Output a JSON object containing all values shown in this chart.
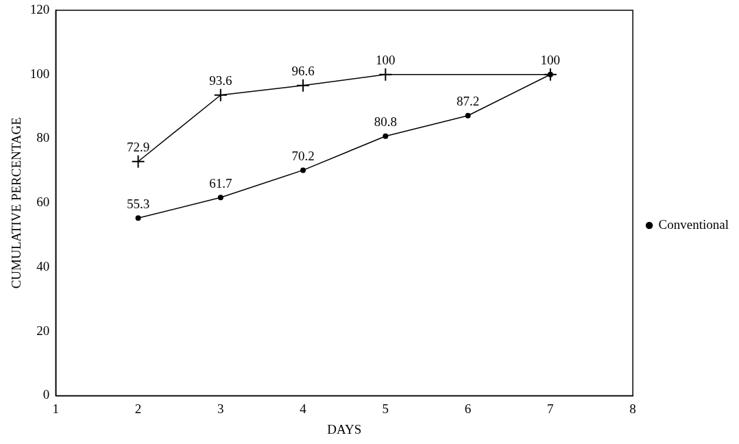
{
  "chart_data": {
    "type": "line",
    "xlabel": "DAYS",
    "ylabel": "CUMULATIVE PERCENTAGE",
    "xlim": [
      1,
      8
    ],
    "xticks": [
      1,
      2,
      3,
      4,
      5,
      6,
      7,
      8
    ],
    "ylim": [
      0,
      120
    ],
    "yticks": [
      0,
      20,
      40,
      60,
      80,
      100,
      120
    ],
    "grid": false,
    "legend": "right",
    "line_style": "solid",
    "series": [
      {
        "name": "Conventional",
        "color": "#000000",
        "marker": "circle",
        "x": [
          2,
          3,
          4,
          5,
          6,
          7
        ],
        "values": [
          55.3,
          61.7,
          70.2,
          80.8,
          87.2,
          100
        ],
        "value_labels": [
          "55.3",
          "61.7",
          "70.2",
          "80.8",
          "87.2",
          null
        ]
      },
      {
        "color": "#000000",
        "marker": "cross",
        "x": [
          2,
          3,
          4,
          5,
          7
        ],
        "values": [
          72.9,
          93.6,
          96.6,
          100,
          100
        ],
        "value_labels": [
          "72.9",
          "93.6",
          "96.6",
          "100",
          "100"
        ]
      }
    ]
  }
}
